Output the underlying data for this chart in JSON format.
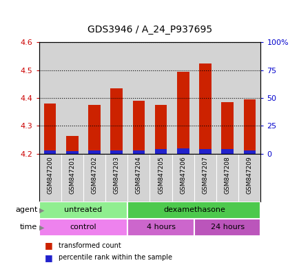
{
  "title": "GDS3946 / A_24_P937695",
  "samples": [
    "GSM847200",
    "GSM847201",
    "GSM847202",
    "GSM847203",
    "GSM847204",
    "GSM847205",
    "GSM847206",
    "GSM847207",
    "GSM847208",
    "GSM847209"
  ],
  "transformed_count": [
    4.38,
    4.265,
    4.375,
    4.435,
    4.39,
    4.375,
    4.495,
    4.525,
    4.385,
    4.395
  ],
  "percentile_rank": [
    3,
    2,
    3,
    3,
    3,
    4,
    5,
    4,
    4,
    3
  ],
  "base_value": 4.2,
  "ylim_left": [
    4.2,
    4.6
  ],
  "ylim_right": [
    0,
    100
  ],
  "yticks_left": [
    4.2,
    4.3,
    4.4,
    4.5,
    4.6
  ],
  "yticks_right": [
    0,
    25,
    50,
    75,
    100
  ],
  "ytick_labels_right": [
    "0",
    "25",
    "50",
    "75",
    "100%"
  ],
  "agent_groups": [
    {
      "label": "untreated",
      "start": 0,
      "end": 4,
      "color": "#90EE90"
    },
    {
      "label": "dexamethasone",
      "start": 4,
      "end": 10,
      "color": "#4DC94D"
    }
  ],
  "time_groups": [
    {
      "label": "control",
      "start": 0,
      "end": 4,
      "color": "#EE82EE"
    },
    {
      "label": "4 hours",
      "start": 4,
      "end": 7,
      "color": "#CC66CC"
    },
    {
      "label": "24 hours",
      "start": 7,
      "end": 10,
      "color": "#BB55BB"
    }
  ],
  "bar_color_red": "#CC2200",
  "bar_color_blue": "#2222CC",
  "bar_width": 0.55,
  "bg_color": "#D3D3D3",
  "title_fontsize": 10,
  "axis_color_left": "#CC0000",
  "axis_color_right": "#0000CC"
}
